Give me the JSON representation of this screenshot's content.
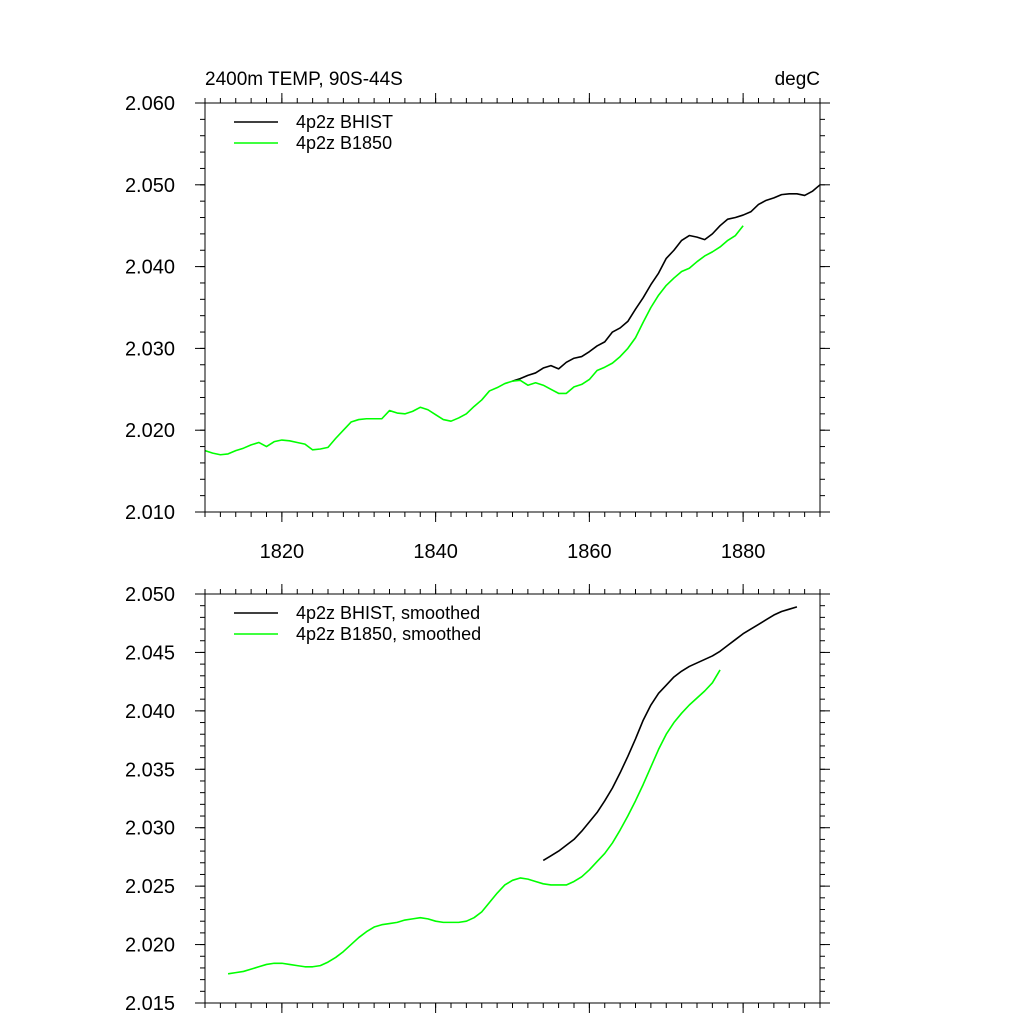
{
  "chart_data": [
    {
      "type": "line",
      "title_left": "2400m TEMP, 90S-44S",
      "title_right": "degC",
      "xlim": [
        1810,
        1890
      ],
      "ylim": [
        2.01,
        2.06
      ],
      "xticks": [
        1820,
        1840,
        1860,
        1880
      ],
      "xtick_labels": [
        "1820",
        "1840",
        "1860",
        "1880"
      ],
      "yticks": [
        2.01,
        2.02,
        2.03,
        2.04,
        2.05,
        2.06
      ],
      "ytick_labels": [
        "2.010",
        "2.020",
        "2.030",
        "2.040",
        "2.050",
        "2.060"
      ],
      "legend_position": "top-left",
      "series": [
        {
          "name": "4p2z BHIST",
          "color": "#000000",
          "x": [
            1850,
            1851,
            1852,
            1853,
            1854,
            1855,
            1856,
            1857,
            1858,
            1859,
            1860,
            1861,
            1862,
            1863,
            1864,
            1865,
            1866,
            1867,
            1868,
            1869,
            1870,
            1871,
            1872,
            1873,
            1874,
            1875,
            1876,
            1877,
            1878,
            1879,
            1880,
            1881,
            1882,
            1883,
            1884,
            1885,
            1886,
            1887,
            1888,
            1889,
            1890
          ],
          "y": [
            2.026,
            2.0263,
            2.0267,
            2.027,
            2.0276,
            2.0279,
            2.0275,
            2.0283,
            2.0288,
            2.029,
            2.0296,
            2.0303,
            2.0308,
            2.032,
            2.0325,
            2.0333,
            2.0348,
            2.0362,
            2.0378,
            2.0392,
            2.041,
            2.042,
            2.0432,
            2.0438,
            2.0436,
            2.0433,
            2.044,
            2.045,
            2.0458,
            2.046,
            2.0463,
            2.0467,
            2.0476,
            2.0481,
            2.0484,
            2.0488,
            2.0489,
            2.0489,
            2.0487,
            2.0492,
            2.05
          ]
        },
        {
          "name": "4p2z B1850",
          "color": "#00ff00",
          "x": [
            1810,
            1811,
            1812,
            1813,
            1814,
            1815,
            1816,
            1817,
            1818,
            1819,
            1820,
            1821,
            1822,
            1823,
            1824,
            1825,
            1826,
            1827,
            1828,
            1829,
            1830,
            1831,
            1832,
            1833,
            1834,
            1835,
            1836,
            1837,
            1838,
            1839,
            1840,
            1841,
            1842,
            1843,
            1844,
            1845,
            1846,
            1847,
            1848,
            1849,
            1850,
            1851,
            1852,
            1853,
            1854,
            1855,
            1856,
            1857,
            1858,
            1859,
            1860,
            1861,
            1862,
            1863,
            1864,
            1865,
            1866,
            1867,
            1868,
            1869,
            1870,
            1871,
            1872,
            1873,
            1874,
            1875,
            1876,
            1877,
            1878,
            1879,
            1880
          ],
          "y": [
            2.0175,
            2.0172,
            2.017,
            2.0171,
            2.0175,
            2.0178,
            2.0182,
            2.0185,
            2.018,
            2.0186,
            2.0188,
            2.0187,
            2.0185,
            2.0183,
            2.0176,
            2.0177,
            2.0179,
            2.019,
            2.02,
            2.021,
            2.0213,
            2.0214,
            2.0214,
            2.0214,
            2.0224,
            2.0221,
            2.022,
            2.0223,
            2.0228,
            2.0225,
            2.0219,
            2.0213,
            2.0211,
            2.0215,
            2.022,
            2.0229,
            2.0237,
            2.0248,
            2.0252,
            2.0257,
            2.026,
            2.0261,
            2.0255,
            2.0258,
            2.0255,
            2.025,
            2.0245,
            2.0245,
            2.0253,
            2.0256,
            2.0262,
            2.0273,
            2.0277,
            2.0282,
            2.029,
            2.03,
            2.0313,
            2.0332,
            2.035,
            2.0365,
            2.0377,
            2.0386,
            2.0394,
            2.0398,
            2.0406,
            2.0413,
            2.0418,
            2.0424,
            2.0432,
            2.0438,
            2.045
          ]
        }
      ]
    },
    {
      "type": "line",
      "xlim": [
        1810,
        1890
      ],
      "ylim": [
        2.015,
        2.05
      ],
      "xticks": [
        1820,
        1840,
        1860,
        1880
      ],
      "xtick_labels": [],
      "yticks": [
        2.015,
        2.02,
        2.025,
        2.03,
        2.035,
        2.04,
        2.045,
        2.05
      ],
      "ytick_labels": [
        "2.015",
        "2.020",
        "2.025",
        "2.030",
        "2.035",
        "2.040",
        "2.045",
        "2.050"
      ],
      "legend_position": "top-left",
      "series": [
        {
          "name": "4p2z BHIST, smoothed",
          "color": "#000000",
          "x": [
            1854,
            1855,
            1856,
            1857,
            1858,
            1859,
            1860,
            1861,
            1862,
            1863,
            1864,
            1865,
            1866,
            1867,
            1868,
            1869,
            1870,
            1871,
            1872,
            1873,
            1874,
            1875,
            1876,
            1877,
            1878,
            1879,
            1880,
            1881,
            1882,
            1883,
            1884,
            1885,
            1886,
            1887
          ],
          "y": [
            2.0272,
            2.0276,
            2.028,
            2.0285,
            2.029,
            2.0297,
            2.0305,
            2.0313,
            2.0323,
            2.0334,
            2.0347,
            2.0361,
            2.0376,
            2.0392,
            2.0405,
            2.0415,
            2.0422,
            2.0429,
            2.0434,
            2.0438,
            2.0441,
            2.0444,
            2.0447,
            2.0451,
            2.0456,
            2.0461,
            2.0466,
            2.047,
            2.0474,
            2.0478,
            2.0482,
            2.0485,
            2.0487,
            2.0489
          ]
        },
        {
          "name": "4p2z B1850, smoothed",
          "color": "#00ff00",
          "x": [
            1813,
            1814,
            1815,
            1816,
            1817,
            1818,
            1819,
            1820,
            1821,
            1822,
            1823,
            1824,
            1825,
            1826,
            1827,
            1828,
            1829,
            1830,
            1831,
            1832,
            1833,
            1834,
            1835,
            1836,
            1837,
            1838,
            1839,
            1840,
            1841,
            1842,
            1843,
            1844,
            1845,
            1846,
            1847,
            1848,
            1849,
            1850,
            1851,
            1852,
            1853,
            1854,
            1855,
            1856,
            1857,
            1858,
            1859,
            1860,
            1861,
            1862,
            1863,
            1864,
            1865,
            1866,
            1867,
            1868,
            1869,
            1870,
            1871,
            1872,
            1873,
            1874,
            1875,
            1876,
            1877
          ],
          "y": [
            2.0175,
            2.0176,
            2.0177,
            2.0179,
            2.0181,
            2.0183,
            2.0184,
            2.0184,
            2.0183,
            2.0182,
            2.0181,
            2.0181,
            2.0182,
            2.0185,
            2.0189,
            2.0194,
            2.02,
            2.0206,
            2.0211,
            2.0215,
            2.0217,
            2.0218,
            2.0219,
            2.0221,
            2.0222,
            2.0223,
            2.0222,
            2.022,
            2.0219,
            2.0219,
            2.0219,
            2.022,
            2.0223,
            2.0228,
            2.0236,
            2.0244,
            2.0251,
            2.0255,
            2.0257,
            2.0256,
            2.0254,
            2.0252,
            2.0251,
            2.0251,
            2.0251,
            2.0254,
            2.0258,
            2.0264,
            2.0271,
            2.0278,
            2.0287,
            2.0298,
            2.031,
            2.0323,
            2.0337,
            2.0352,
            2.0367,
            2.038,
            2.039,
            2.0398,
            2.0405,
            2.0411,
            2.0417,
            2.0424,
            2.0435
          ]
        }
      ]
    }
  ]
}
